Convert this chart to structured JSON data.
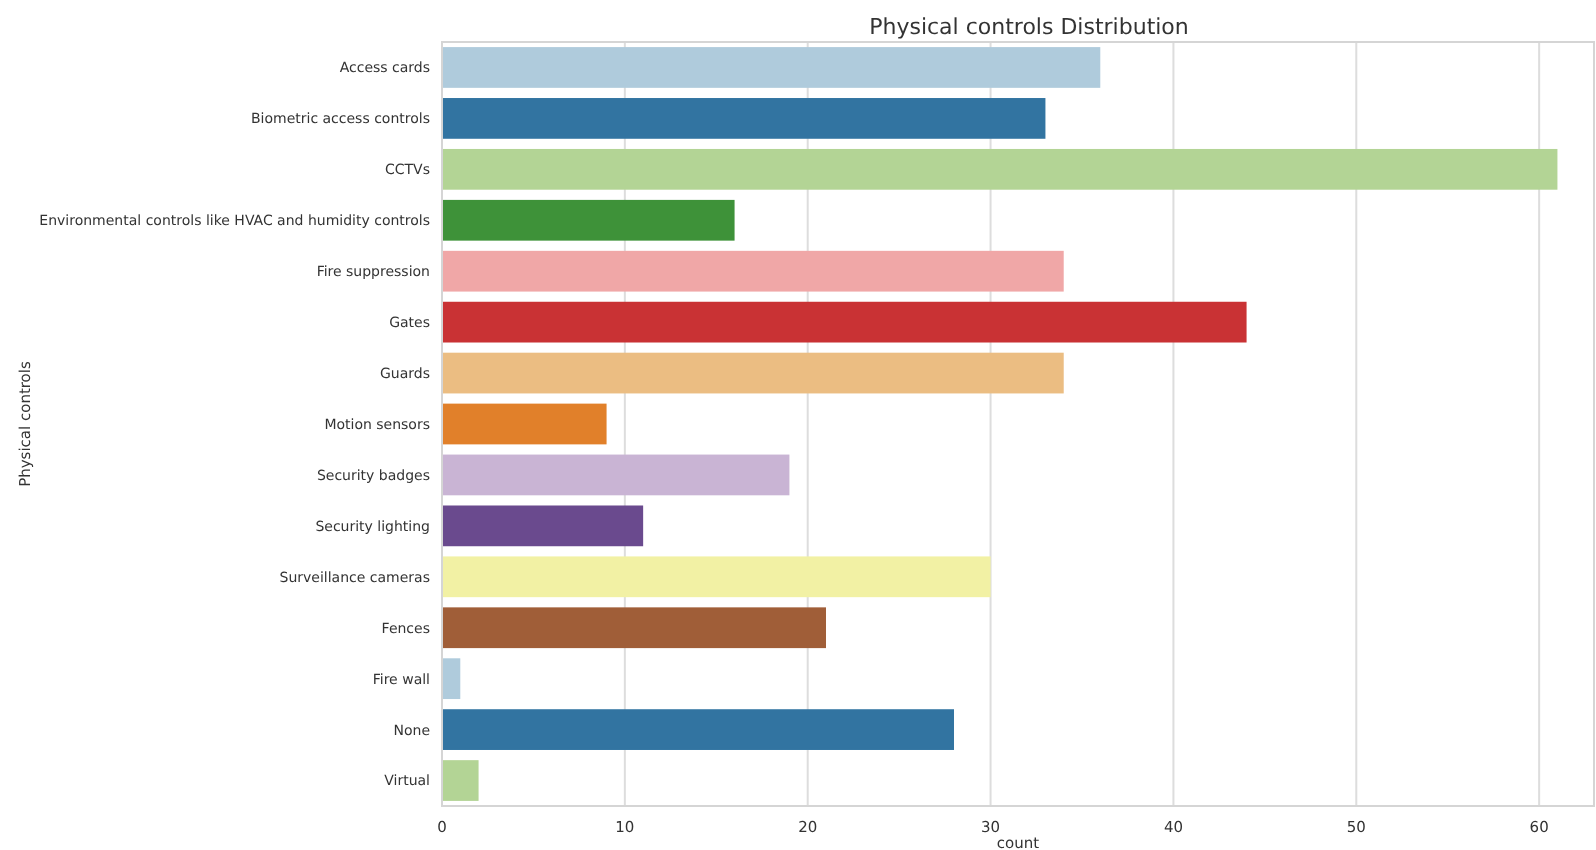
{
  "chart_data": {
    "type": "bar",
    "orientation": "horizontal",
    "title": "Physical controls Distribution",
    "xlabel": "count",
    "ylabel": "Physical controls",
    "categories": [
      "Access cards",
      "Biometric access controls",
      "CCTVs",
      "Environmental controls like HVAC and humidity controls",
      "Fire suppression",
      "Gates",
      "Guards",
      "Motion sensors",
      "Security badges",
      "Security lighting",
      "Surveillance cameras",
      "Fences",
      "Fire wall",
      "None",
      "Virtual"
    ],
    "values": [
      36,
      33,
      61,
      16,
      34,
      44,
      34,
      9,
      19,
      11,
      30,
      21,
      1,
      28,
      2
    ],
    "colors": [
      "#afcbdc",
      "#3274a1",
      "#b3d495",
      "#3e9239",
      "#f0a7a7",
      "#c93234",
      "#ebbd82",
      "#e1802a",
      "#c9b4d4",
      "#6a4a8e",
      "#f2f1a4",
      "#a05e38",
      "#afcbdc",
      "#3274a1",
      "#b3d495"
    ],
    "xlim": [
      0,
      63
    ],
    "xticks": [
      0,
      10,
      20,
      30,
      40,
      50,
      60
    ],
    "grid": "x"
  }
}
